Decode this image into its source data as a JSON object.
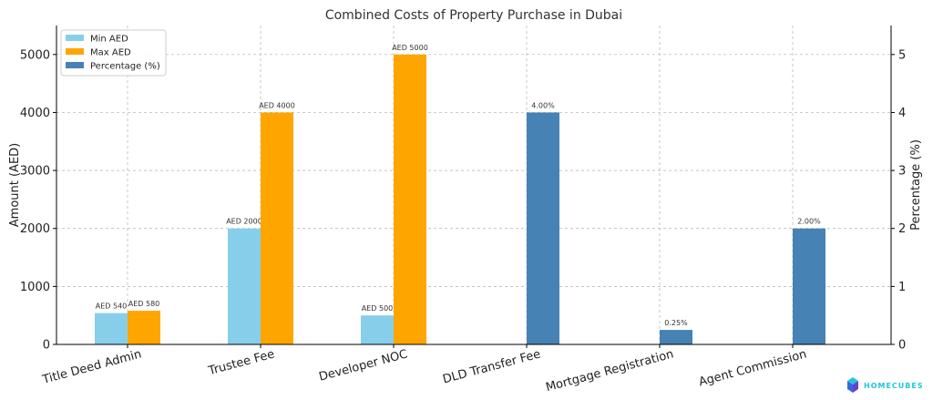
{
  "chart_data": {
    "type": "bar",
    "title": "Combined Costs of Property Purchase in Dubai",
    "ylabel_left": "Amount (AED)",
    "ylabel_right": "Percentage (%)",
    "categories": [
      "Title Deed Admin",
      "Trustee Fee",
      "Developer NOC",
      "DLD Transfer Fee",
      "Mortgage Registration",
      "Agent Commission"
    ],
    "ylim_left": [
      0,
      5500
    ],
    "ylim_right": [
      0,
      5.5
    ],
    "yticks_left": [
      0,
      1000,
      2000,
      3000,
      4000,
      5000
    ],
    "yticks_right": [
      0,
      1,
      2,
      3,
      4,
      5
    ],
    "grid": true,
    "legend_position": "top-left",
    "series": [
      {
        "name": "Min AED",
        "axis": "left",
        "color": "#87ceeb",
        "values": [
          540,
          2000,
          500,
          null,
          null,
          null
        ],
        "labels": [
          "AED 540",
          "AED 2000",
          "AED 500",
          "",
          "",
          ""
        ]
      },
      {
        "name": "Max AED",
        "axis": "left",
        "color": "#ffa500",
        "values": [
          580,
          4000,
          5000,
          null,
          null,
          null
        ],
        "labels": [
          "AED 580",
          "AED 4000",
          "AED 5000",
          "",
          "",
          ""
        ]
      },
      {
        "name": "Percentage (%)",
        "axis": "right",
        "color": "#4682b4",
        "values": [
          null,
          null,
          null,
          4.0,
          0.25,
          2.0
        ],
        "labels": [
          "",
          "",
          "",
          "4.00%",
          "0.25%",
          "2.00%"
        ]
      }
    ]
  },
  "watermark": {
    "text": "HOMECUBES",
    "color": "#22c6d8"
  }
}
